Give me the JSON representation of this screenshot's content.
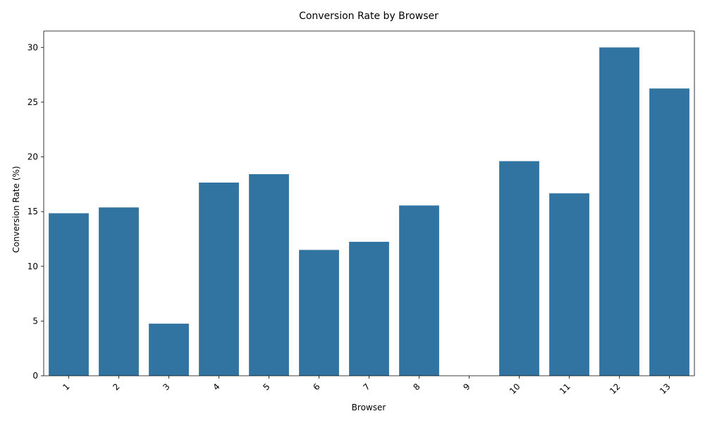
{
  "chart_data": {
    "type": "bar",
    "title": "Conversion Rate by Browser",
    "xlabel": "Browser",
    "ylabel": "Conversion Rate (%)",
    "categories": [
      "1",
      "2",
      "3",
      "4",
      "5",
      "6",
      "7",
      "8",
      "9",
      "10",
      "11",
      "12",
      "13"
    ],
    "values": [
      14.85,
      15.38,
      4.76,
      17.65,
      18.42,
      11.5,
      12.24,
      15.56,
      0,
      19.61,
      16.67,
      30.0,
      26.25
    ],
    "ylim": [
      0,
      31.5
    ],
    "yticks": [
      0,
      5,
      10,
      15,
      20,
      25,
      30
    ],
    "grid": false,
    "legend": "none",
    "bar_color": "#3274a1",
    "xtick_rotation": 45
  }
}
